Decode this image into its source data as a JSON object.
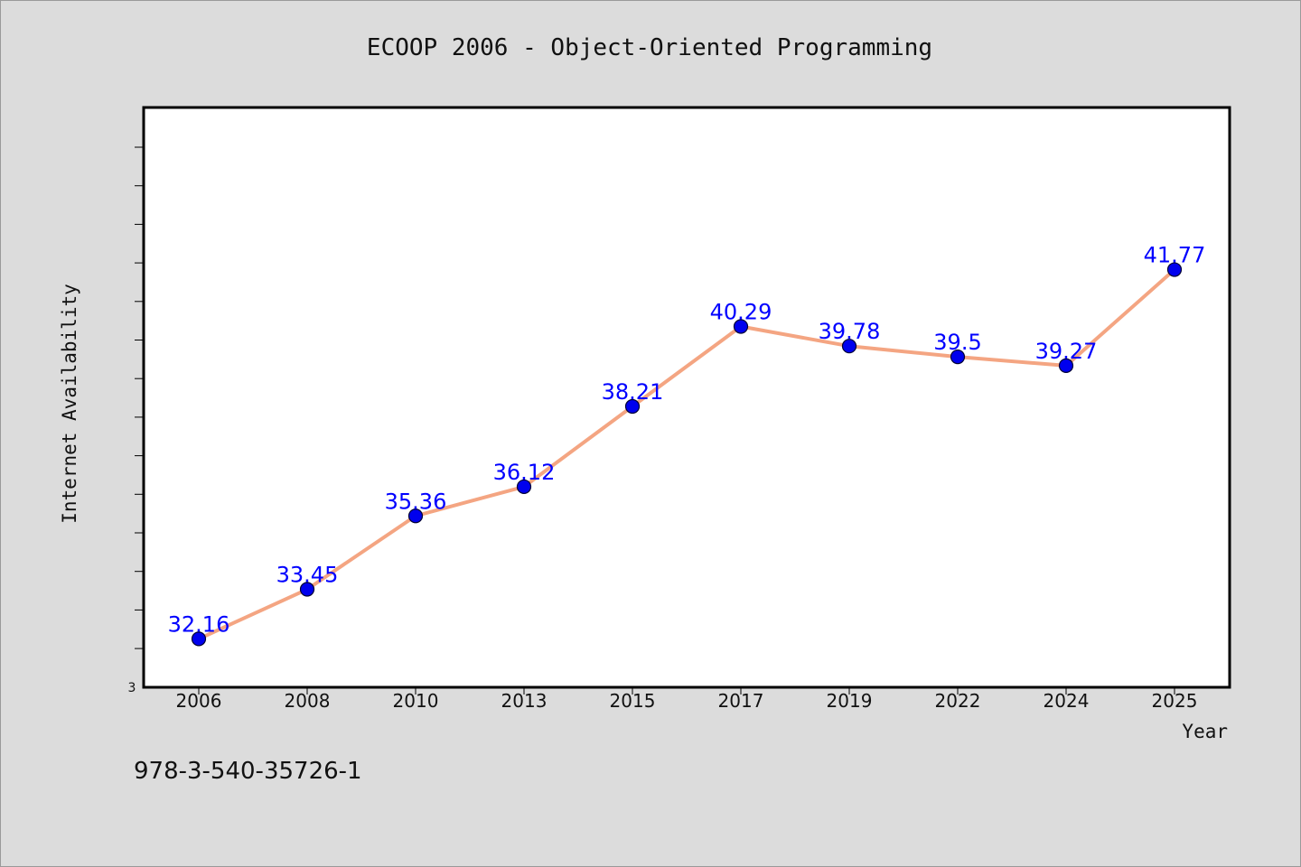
{
  "chart_data": {
    "type": "line",
    "title": "ECOOP 2006 - Object-Oriented Programming",
    "xlabel": "Year",
    "ylabel": "Internet Availability",
    "categories": [
      "2006",
      "2008",
      "2010",
      "2013",
      "2015",
      "2017",
      "2019",
      "2022",
      "2024",
      "2025"
    ],
    "values": [
      32.16,
      33.45,
      35.36,
      36.12,
      38.21,
      40.29,
      39.78,
      39.5,
      39.27,
      41.77
    ],
    "data_labels": [
      "32.16",
      "33.45",
      "35.36",
      "36.12",
      "38.21",
      "40.29",
      "39.78",
      "39.5",
      "39.27",
      "41.77"
    ],
    "y_tick_label": "3",
    "ylim": [
      30.9,
      45.99
    ],
    "grid": false,
    "legend": "none",
    "colors": {
      "line": "#f4a582",
      "marker": "#0000ee",
      "label": "#0000ff",
      "plot_bg": "#ffffff",
      "page_bg": "#dcdcdc"
    }
  },
  "footer": {
    "isbn": "978-3-540-35726-1"
  }
}
